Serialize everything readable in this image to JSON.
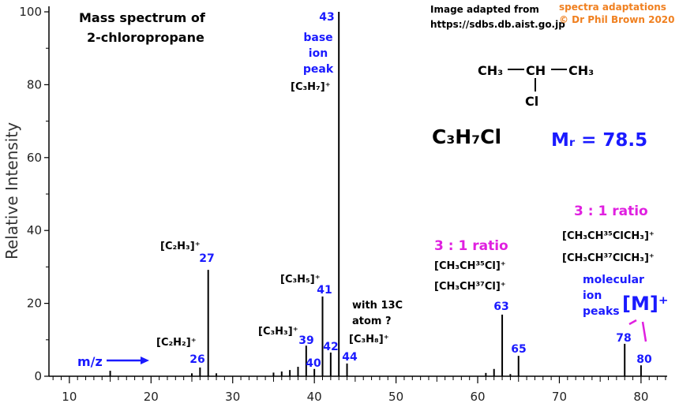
{
  "chart_data": {
    "type": "stem",
    "title": [
      "Mass spectrum of",
      "2-chloropropane"
    ],
    "ylabel": "Relative Intensity",
    "xlabel": "m/z",
    "color": "#000000",
    "label_color": "#1a1aff",
    "x": [
      15,
      25,
      26,
      27,
      28,
      35,
      36,
      37,
      38,
      39,
      40,
      41,
      42,
      43,
      44,
      61,
      62,
      63,
      64,
      65,
      78,
      80
    ],
    "values": [
      1.5,
      0.8,
      2.4,
      29.2,
      0.8,
      1,
      1.3,
      1.7,
      2.6,
      8.4,
      2,
      21.9,
      6.5,
      100,
      3.5,
      0.9,
      2,
      16.9,
      0.6,
      5.6,
      8.9,
      3
    ],
    "xlim": [
      7.5,
      83.2
    ],
    "xticks": [
      10,
      20,
      30,
      40,
      50,
      60,
      70,
      80
    ],
    "ylim": [
      0,
      100
    ],
    "yticks": [
      0,
      20,
      40,
      60,
      80,
      100
    ],
    "grid": false,
    "annotations": [
      {
        "text": "Image adapted from",
        "color": "#000000"
      },
      {
        "text": "https://sdbs.db.aist.go.jp",
        "color": "#000000"
      },
      {
        "text": "spectra adaptations",
        "color": "#f08020"
      },
      {
        "text": "© Dr Phil Brown 2020",
        "color": "#f08020"
      },
      {
        "text": "base",
        "color": "#1a1aff"
      },
      {
        "text": "ion",
        "color": "#1a1aff"
      },
      {
        "text": "peak",
        "color": "#1a1aff"
      },
      {
        "text": "[C₃H₇]⁺",
        "color": "#000000"
      },
      {
        "text": "CH₃",
        "color": "#000000"
      },
      {
        "text": "CH",
        "color": "#000000"
      },
      {
        "text": "CH₃",
        "color": "#000000"
      },
      {
        "text": "Cl",
        "color": "#000000"
      },
      {
        "text": "C₃H₇Cl",
        "color": "#000000"
      },
      {
        "text": "Mᵣ = 78.5",
        "color": "#1a1aff"
      },
      {
        "text": "3 : 1 ratio",
        "color": "#e020e0"
      },
      {
        "text": "[CH₃CH³⁵ClCH₃]⁺",
        "color": "#000000"
      },
      {
        "text": "[CH₃CH³⁷ClCH₃]⁺",
        "color": "#000000"
      },
      {
        "text": "3 : 1 ratio",
        "color": "#e020e0"
      },
      {
        "text": "[CH₃CH³⁵Cl]⁺",
        "color": "#000000"
      },
      {
        "text": "[CH₃CH³⁷Cl]⁺",
        "color": "#000000"
      },
      {
        "text": "molecular",
        "color": "#1a1aff"
      },
      {
        "text": "ion",
        "color": "#1a1aff"
      },
      {
        "text": "peaks",
        "color": "#1a1aff"
      },
      {
        "text": "[M]⁺",
        "color": "#1a1aff"
      },
      {
        "text": "[C₂H₃]⁺",
        "color": "#000000"
      },
      {
        "text": "[C₂H₂]⁺",
        "color": "#000000"
      },
      {
        "text": "[C₃H₅]⁺",
        "color": "#000000"
      },
      {
        "text": "[C₃H₃]⁺",
        "color": "#000000"
      },
      {
        "text": "with 13C",
        "color": "#000000"
      },
      {
        "text": "atom ?",
        "color": "#000000"
      },
      {
        "text": "[C₃H₈]⁺",
        "color": "#000000"
      }
    ]
  }
}
